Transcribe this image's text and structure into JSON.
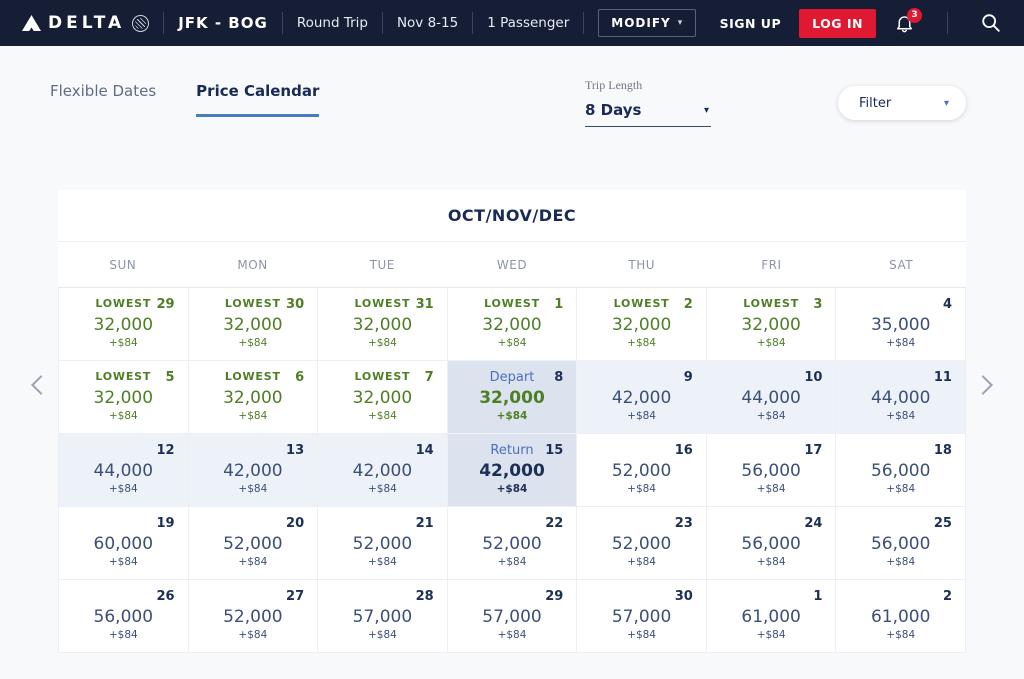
{
  "icons": {
    "caret_down": "▾"
  },
  "colors": {
    "header_bg": "#161e36",
    "delta_red": "#e01933",
    "lowest_green": "#4e7f24",
    "navy_text": "#1a2a57",
    "selected_cell_bg": "#dce3ef",
    "range_cell_bg": "#edf1f8",
    "tab_underline": "#4a7bc0"
  },
  "header": {
    "brand": "DELTA",
    "route": "JFK - BOG",
    "trip_type": "Round Trip",
    "dates": "Nov 8-15",
    "passengers": "1 Passenger",
    "modify_label": "MODIFY",
    "sign_up_label": "SIGN UP",
    "log_in_label": "LOG IN",
    "notification_count": "3"
  },
  "tabs": [
    {
      "label": "Flexible Dates",
      "active": false
    },
    {
      "label": "Price Calendar",
      "active": true
    }
  ],
  "controls": {
    "trip_length_label": "Trip Length",
    "trip_length_value": "8 Days",
    "filter_label": "Filter"
  },
  "calendar": {
    "title": "OCT/NOV/DEC",
    "day_headers": [
      "SUN",
      "MON",
      "TUE",
      "WED",
      "THU",
      "FRI",
      "SAT"
    ],
    "weeks": [
      [
        {
          "date": "29",
          "type": "lowest",
          "label": "LOWEST",
          "price": "32,000",
          "fee": "+$84"
        },
        {
          "date": "30",
          "type": "lowest",
          "label": "LOWEST",
          "price": "32,000",
          "fee": "+$84"
        },
        {
          "date": "31",
          "type": "lowest",
          "label": "LOWEST",
          "price": "32,000",
          "fee": "+$84"
        },
        {
          "date": "1",
          "type": "lowest",
          "label": "LOWEST",
          "price": "32,000",
          "fee": "+$84"
        },
        {
          "date": "2",
          "type": "lowest",
          "label": "LOWEST",
          "price": "32,000",
          "fee": "+$84"
        },
        {
          "date": "3",
          "type": "lowest",
          "label": "LOWEST",
          "price": "32,000",
          "fee": "+$84"
        },
        {
          "date": "4",
          "type": "normal",
          "label": "",
          "price": "35,000",
          "fee": "+$84"
        }
      ],
      [
        {
          "date": "5",
          "type": "lowest",
          "label": "LOWEST",
          "price": "32,000",
          "fee": "+$84"
        },
        {
          "date": "6",
          "type": "lowest",
          "label": "LOWEST",
          "price": "32,000",
          "fee": "+$84"
        },
        {
          "date": "7",
          "type": "lowest",
          "label": "LOWEST",
          "price": "32,000",
          "fee": "+$84"
        },
        {
          "date": "8",
          "type": "depart",
          "label": "Depart",
          "price": "32,000",
          "fee": "+$84"
        },
        {
          "date": "9",
          "type": "range",
          "label": "",
          "price": "42,000",
          "fee": "+$84"
        },
        {
          "date": "10",
          "type": "range",
          "label": "",
          "price": "44,000",
          "fee": "+$84"
        },
        {
          "date": "11",
          "type": "range",
          "label": "",
          "price": "44,000",
          "fee": "+$84"
        }
      ],
      [
        {
          "date": "12",
          "type": "range",
          "label": "",
          "price": "44,000",
          "fee": "+$84"
        },
        {
          "date": "13",
          "type": "range",
          "label": "",
          "price": "42,000",
          "fee": "+$84"
        },
        {
          "date": "14",
          "type": "range",
          "label": "",
          "price": "42,000",
          "fee": "+$84"
        },
        {
          "date": "15",
          "type": "return",
          "label": "Return",
          "price": "42,000",
          "fee": "+$84"
        },
        {
          "date": "16",
          "type": "normal",
          "label": "",
          "price": "52,000",
          "fee": "+$84"
        },
        {
          "date": "17",
          "type": "normal",
          "label": "",
          "price": "56,000",
          "fee": "+$84"
        },
        {
          "date": "18",
          "type": "normal",
          "label": "",
          "price": "56,000",
          "fee": "+$84"
        }
      ],
      [
        {
          "date": "19",
          "type": "normal",
          "label": "",
          "price": "60,000",
          "fee": "+$84"
        },
        {
          "date": "20",
          "type": "normal",
          "label": "",
          "price": "52,000",
          "fee": "+$84"
        },
        {
          "date": "21",
          "type": "normal",
          "label": "",
          "price": "52,000",
          "fee": "+$84"
        },
        {
          "date": "22",
          "type": "normal",
          "label": "",
          "price": "52,000",
          "fee": "+$84"
        },
        {
          "date": "23",
          "type": "normal",
          "label": "",
          "price": "52,000",
          "fee": "+$84"
        },
        {
          "date": "24",
          "type": "normal",
          "label": "",
          "price": "56,000",
          "fee": "+$84"
        },
        {
          "date": "25",
          "type": "normal",
          "label": "",
          "price": "56,000",
          "fee": "+$84"
        }
      ],
      [
        {
          "date": "26",
          "type": "normal",
          "label": "",
          "price": "56,000",
          "fee": "+$84"
        },
        {
          "date": "27",
          "type": "normal",
          "label": "",
          "price": "52,000",
          "fee": "+$84"
        },
        {
          "date": "28",
          "type": "normal",
          "label": "",
          "price": "57,000",
          "fee": "+$84"
        },
        {
          "date": "29",
          "type": "normal",
          "label": "",
          "price": "57,000",
          "fee": "+$84"
        },
        {
          "date": "30",
          "type": "normal",
          "label": "",
          "price": "57,000",
          "fee": "+$84"
        },
        {
          "date": "1",
          "type": "normal",
          "label": "",
          "price": "61,000",
          "fee": "+$84"
        },
        {
          "date": "2",
          "type": "normal",
          "label": "",
          "price": "61,000",
          "fee": "+$84"
        }
      ]
    ]
  }
}
